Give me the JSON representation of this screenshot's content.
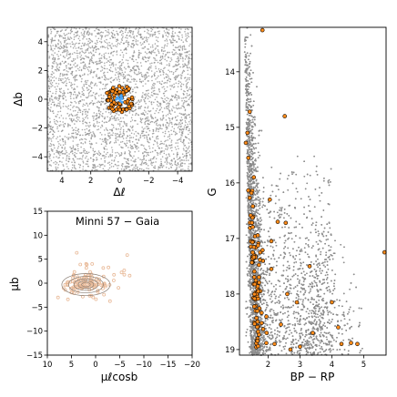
{
  "chart_data": [
    {
      "type": "scatter",
      "name": "spatial",
      "title": "",
      "xlabel": "Δℓ",
      "ylabel": "Δb",
      "xlim": [
        5,
        -5
      ],
      "ylim": [
        -5,
        5
      ],
      "xticks": [
        4,
        2,
        0,
        -2,
        -4
      ],
      "yticks": [
        4,
        2,
        0,
        -2,
        -4
      ],
      "tick_labels_x": [
        "4",
        "2",
        "0",
        "−2",
        "−4"
      ],
      "tick_labels_y": [
        "4",
        "2",
        "0",
        "−2",
        "−4"
      ],
      "series": [
        {
          "role": "field",
          "color": "#8c8c8c",
          "count": 3200,
          "distribution": "uniform over the field"
        },
        {
          "role": "members",
          "color": "#ff8c1a",
          "edgecolor": "#000000",
          "count": 70,
          "radius_max": 1.0,
          "center": [
            0,
            0
          ]
        },
        {
          "role": "core",
          "color": "#49a8ff",
          "count": 12,
          "radius_max": 0.3,
          "center": [
            0,
            0
          ]
        }
      ],
      "grid": false
    },
    {
      "type": "scatter",
      "name": "proper-motion",
      "title": "Minni 57  −  Gaia",
      "xlabel": "μℓcosb",
      "ylabel": "μb",
      "xlim": [
        10,
        -20
      ],
      "ylim": [
        -15,
        15
      ],
      "xticks": [
        10,
        5,
        0,
        -5,
        -10,
        -15,
        -20
      ],
      "yticks": [
        15,
        10,
        5,
        0,
        -5,
        -10,
        -15
      ],
      "tick_labels_x": [
        "10",
        "5",
        "0",
        "−5",
        "−10",
        "−15",
        "−20"
      ],
      "tick_labels_y": [
        "15",
        "10",
        "5",
        "0",
        "−5",
        "−10",
        "−15"
      ],
      "series": [
        {
          "role": "members",
          "color": "#e8b896",
          "count": 130,
          "center": [
            2.0,
            0.0
          ]
        }
      ],
      "contours": {
        "color": "#8a7e74",
        "center": [
          2.0,
          -0.3
        ],
        "levels": [
          {
            "rx": 5.0,
            "ry": 2.3
          },
          {
            "rx": 3.6,
            "ry": 1.7
          },
          {
            "rx": 2.5,
            "ry": 1.2
          },
          {
            "rx": 1.6,
            "ry": 0.8
          },
          {
            "rx": 0.9,
            "ry": 0.45
          }
        ]
      },
      "grid": false
    },
    {
      "type": "scatter",
      "name": "cmd",
      "title": "",
      "xlabel": "BP − RP",
      "ylabel": "G",
      "xlim": [
        1.1,
        5.7
      ],
      "ylim": [
        19.1,
        13.2
      ],
      "y_inverted": true,
      "xticks": [
        2,
        3,
        4,
        5
      ],
      "yticks": [
        14,
        15,
        16,
        17,
        18,
        19
      ],
      "tick_labels_x": [
        "2",
        "3",
        "4",
        "5"
      ],
      "tick_labels_y": [
        "14",
        "15",
        "16",
        "17",
        "18",
        "19"
      ],
      "series": [
        {
          "role": "field",
          "color": "#8c8c8c",
          "count": 9000
        },
        {
          "role": "members",
          "color": "#ff8c1a",
          "edgecolor": "#000000",
          "count": 110,
          "highlight": [
            [
              1.82,
              13.25
            ],
            [
              1.42,
              14.72
            ],
            [
              2.52,
              14.8
            ],
            [
              1.35,
              15.1
            ],
            [
              1.3,
              15.28
            ],
            [
              1.38,
              15.55
            ],
            [
              1.55,
              15.9
            ],
            [
              2.05,
              16.3
            ],
            [
              1.52,
              16.42
            ],
            [
              2.3,
              16.7
            ],
            [
              2.55,
              16.72
            ],
            [
              1.75,
              17.25
            ],
            [
              2.1,
              17.55
            ],
            [
              2.1,
              17.05
            ],
            [
              3.3,
              17.5
            ],
            [
              5.65,
              17.25
            ],
            [
              1.6,
              17.8
            ],
            [
              2.6,
              18.0
            ],
            [
              2.9,
              18.15
            ],
            [
              4.0,
              18.15
            ],
            [
              4.2,
              18.6
            ],
            [
              3.4,
              18.7
            ],
            [
              4.3,
              18.9
            ],
            [
              4.6,
              18.88
            ],
            [
              4.8,
              18.9
            ],
            [
              2.4,
              18.55
            ],
            [
              1.95,
              18.7
            ],
            [
              2.2,
              18.9
            ],
            [
              2.7,
              19.0
            ],
            [
              3.0,
              18.95
            ]
          ]
        }
      ],
      "grid": false
    }
  ]
}
